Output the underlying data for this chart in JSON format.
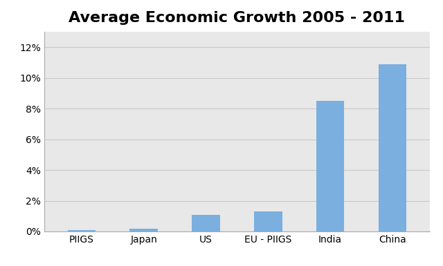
{
  "title": "Average Economic Growth 2005 - 2011",
  "categories": [
    "PIIGS",
    "Japan",
    "US",
    "EU - PIIGS",
    "India",
    "China"
  ],
  "values": [
    0.001,
    0.002,
    0.011,
    0.013,
    0.085,
    0.109
  ],
  "bar_color": "#7aafe0",
  "background_color": "#ffffff",
  "plot_bg_color": "#e8e8e8",
  "ylim": [
    0,
    0.13
  ],
  "yticks": [
    0,
    0.02,
    0.04,
    0.06,
    0.08,
    0.1,
    0.12
  ],
  "title_fontsize": 16,
  "tick_fontsize": 10,
  "grid_color": "#c8c8c8",
  "bar_width": 0.45
}
